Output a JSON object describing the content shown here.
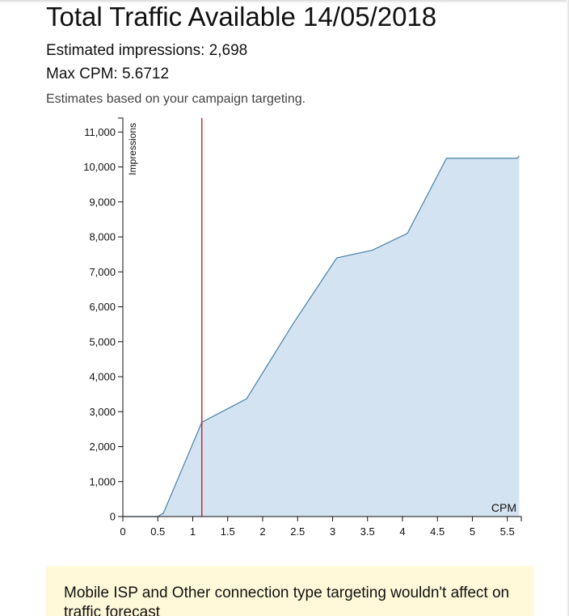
{
  "header": {
    "title": "Total Traffic Available 14/05/2018",
    "estimated_impressions": "Estimated impressions: 2,698",
    "max_cpm": "Max CPM: 5.6712",
    "note": "Estimates based on your campaign targeting."
  },
  "alert": {
    "text": "Mobile ISP and Other connection type targeting wouldn't affect on traffic forecast"
  },
  "colors": {
    "area_fill": "#d4e3f1",
    "line": "#4a7fa5",
    "marker": "#c0141b",
    "axis": "#111111"
  },
  "chart_data": {
    "type": "area",
    "title": "",
    "xlabel": "CPM",
    "ylabel": "Impressions",
    "xlim": [
      0,
      5.7
    ],
    "ylim": [
      0,
      11400
    ],
    "x_ticks": [
      0,
      0.5,
      1,
      1.5,
      2,
      2.5,
      3,
      3.5,
      4,
      4.5,
      5,
      5.5
    ],
    "x_tick_labels": [
      "0",
      "0.5",
      "1",
      "1.5",
      "2",
      "2.5",
      "3",
      "3.5",
      "4",
      "4.5",
      "5",
      "5.5"
    ],
    "y_ticks": [
      0,
      1000,
      2000,
      3000,
      4000,
      5000,
      6000,
      7000,
      8000,
      9000,
      10000,
      11000
    ],
    "y_tick_labels": [
      "0",
      "1,000",
      "2,000",
      "3,000",
      "4,000",
      "5,000",
      "6,000",
      "7,000",
      "8,000",
      "9,000",
      "10,000",
      "11,000"
    ],
    "grid": false,
    "legend": "none",
    "series": [
      {
        "x": [
          0,
          0.5,
          0.58,
          1.13,
          1.77,
          2.43,
          3.06,
          3.57,
          4.07,
          4.63,
          5.64,
          5.67
        ],
        "y": [
          0,
          0,
          100,
          2698,
          3370,
          5500,
          7400,
          7620,
          8100,
          10250,
          10250,
          10320
        ]
      }
    ],
    "marker_line": {
      "x": 1.13,
      "color": "#c0141b"
    }
  }
}
